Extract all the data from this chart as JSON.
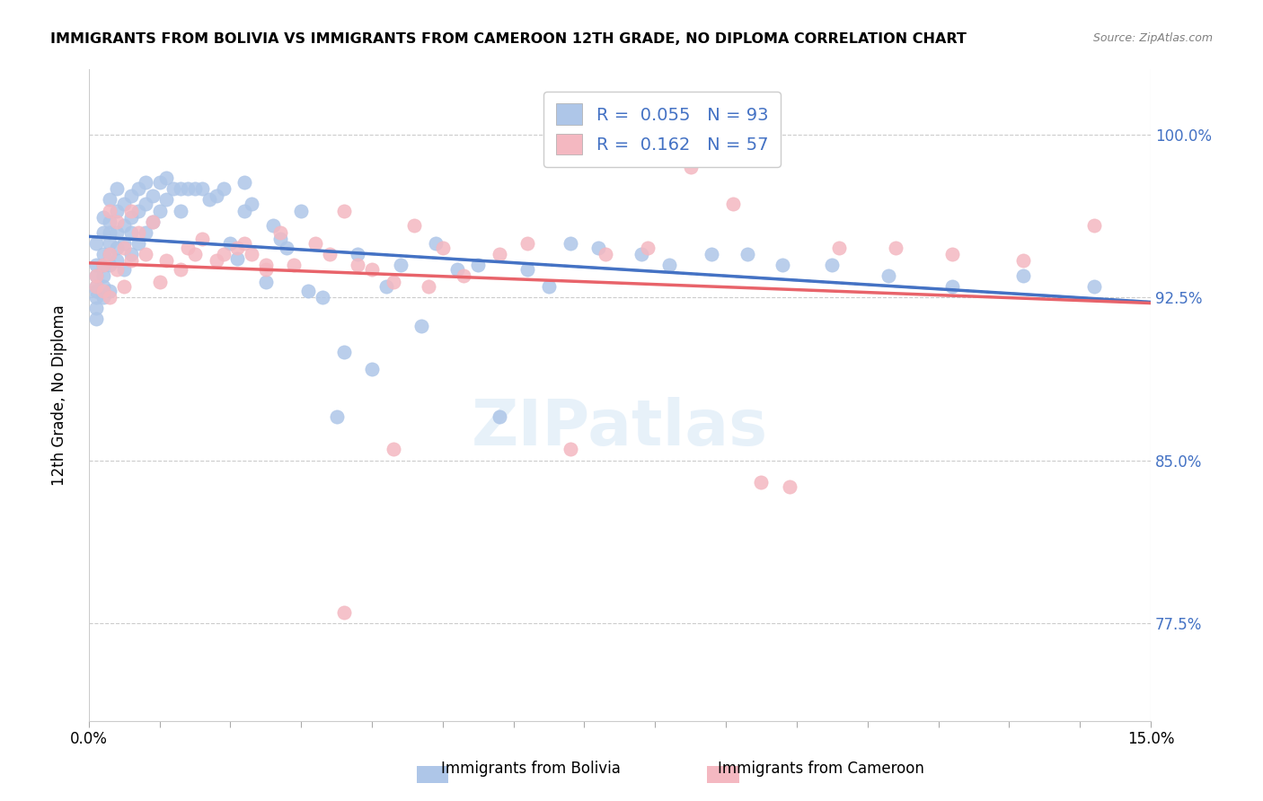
{
  "title": "IMMIGRANTS FROM BOLIVIA VS IMMIGRANTS FROM CAMEROON 12TH GRADE, NO DIPLOMA CORRELATION CHART",
  "source": "Source: ZipAtlas.com",
  "xlabel": "",
  "ylabel": "12th Grade, No Diploma",
  "xlim": [
    0.0,
    0.15
  ],
  "ylim": [
    0.73,
    1.03
  ],
  "xtick_labels": [
    "0.0%",
    "",
    "",
    "",
    "",
    "",
    "",
    "",
    "",
    "",
    "",
    "",
    "",
    "",
    "",
    "15.0%"
  ],
  "ytick_labels": [
    "77.5%",
    "85.0%",
    "92.5%",
    "100.0%"
  ],
  "ytick_values": [
    0.775,
    0.85,
    0.925,
    1.0
  ],
  "bolivia_color": "#aec6e8",
  "cameroon_color": "#f4b8c1",
  "bolivia_line_color": "#4472c4",
  "cameroon_line_color": "#e8636a",
  "bolivia_R": 0.055,
  "bolivia_N": 93,
  "cameroon_R": 0.162,
  "cameroon_N": 57,
  "legend_label_bolivia": "Immigrants from Bolivia",
  "legend_label_cameroon": "Immigrants from Cameroon",
  "bolivia_x": [
    0.001,
    0.001,
    0.001,
    0.001,
    0.001,
    0.001,
    0.001,
    0.001,
    0.002,
    0.002,
    0.002,
    0.002,
    0.002,
    0.002,
    0.002,
    0.003,
    0.003,
    0.003,
    0.003,
    0.003,
    0.003,
    0.003,
    0.004,
    0.004,
    0.004,
    0.004,
    0.004,
    0.005,
    0.005,
    0.005,
    0.005,
    0.006,
    0.006,
    0.006,
    0.006,
    0.007,
    0.007,
    0.007,
    0.008,
    0.008,
    0.008,
    0.009,
    0.009,
    0.01,
    0.01,
    0.011,
    0.011,
    0.012,
    0.013,
    0.013,
    0.014,
    0.015,
    0.016,
    0.017,
    0.018,
    0.019,
    0.02,
    0.021,
    0.022,
    0.022,
    0.023,
    0.025,
    0.026,
    0.027,
    0.028,
    0.03,
    0.031,
    0.033,
    0.035,
    0.036,
    0.038,
    0.04,
    0.042,
    0.044,
    0.047,
    0.049,
    0.052,
    0.055,
    0.058,
    0.062,
    0.065,
    0.068,
    0.072,
    0.078,
    0.082,
    0.088,
    0.093,
    0.098,
    0.105,
    0.113,
    0.122,
    0.132,
    0.142
  ],
  "bolivia_y": [
    0.935,
    0.93,
    0.925,
    0.92,
    0.915,
    0.94,
    0.95,
    0.928,
    0.962,
    0.955,
    0.945,
    0.94,
    0.935,
    0.93,
    0.925,
    0.97,
    0.96,
    0.955,
    0.95,
    0.945,
    0.94,
    0.928,
    0.975,
    0.965,
    0.955,
    0.948,
    0.942,
    0.968,
    0.958,
    0.95,
    0.938,
    0.972,
    0.962,
    0.955,
    0.945,
    0.975,
    0.965,
    0.95,
    0.978,
    0.968,
    0.955,
    0.972,
    0.96,
    0.978,
    0.965,
    0.98,
    0.97,
    0.975,
    0.975,
    0.965,
    0.975,
    0.975,
    0.975,
    0.97,
    0.972,
    0.975,
    0.95,
    0.943,
    0.978,
    0.965,
    0.968,
    0.932,
    0.958,
    0.952,
    0.948,
    0.965,
    0.928,
    0.925,
    0.87,
    0.9,
    0.945,
    0.892,
    0.93,
    0.94,
    0.912,
    0.95,
    0.938,
    0.94,
    0.87,
    0.938,
    0.93,
    0.95,
    0.948,
    0.945,
    0.94,
    0.945,
    0.945,
    0.94,
    0.94,
    0.935,
    0.93,
    0.935,
    0.93
  ],
  "cameroon_x": [
    0.001,
    0.001,
    0.002,
    0.002,
    0.003,
    0.003,
    0.003,
    0.004,
    0.004,
    0.005,
    0.005,
    0.006,
    0.006,
    0.007,
    0.008,
    0.009,
    0.01,
    0.011,
    0.013,
    0.014,
    0.015,
    0.016,
    0.018,
    0.019,
    0.021,
    0.022,
    0.023,
    0.025,
    0.027,
    0.029,
    0.032,
    0.034,
    0.036,
    0.038,
    0.04,
    0.043,
    0.046,
    0.05,
    0.053,
    0.058,
    0.062,
    0.068,
    0.073,
    0.079,
    0.085,
    0.091,
    0.099,
    0.106,
    0.114,
    0.122,
    0.132,
    0.142,
    0.095,
    0.036,
    0.025,
    0.048,
    0.043
  ],
  "cameroon_y": [
    0.93,
    0.935,
    0.94,
    0.928,
    0.965,
    0.945,
    0.925,
    0.96,
    0.938,
    0.948,
    0.93,
    0.965,
    0.942,
    0.955,
    0.945,
    0.96,
    0.932,
    0.942,
    0.938,
    0.948,
    0.945,
    0.952,
    0.942,
    0.945,
    0.948,
    0.95,
    0.945,
    0.938,
    0.955,
    0.94,
    0.95,
    0.945,
    0.965,
    0.94,
    0.938,
    0.932,
    0.958,
    0.948,
    0.935,
    0.945,
    0.95,
    0.855,
    0.945,
    0.948,
    0.985,
    0.968,
    0.838,
    0.948,
    0.948,
    0.945,
    0.942,
    0.958,
    0.84,
    0.78,
    0.94,
    0.93,
    0.855
  ]
}
